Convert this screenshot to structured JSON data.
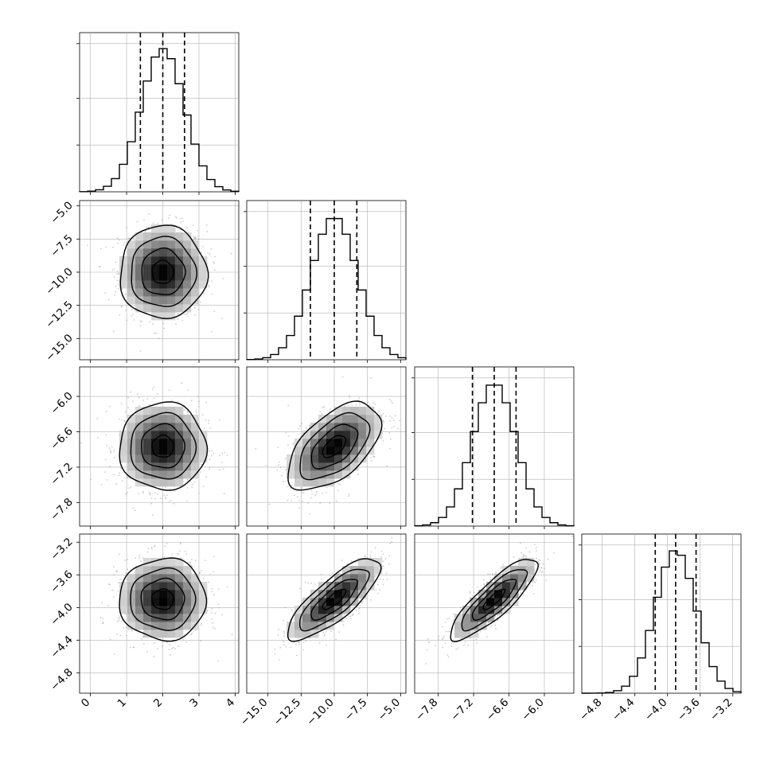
{
  "figure": {
    "type": "corner-plot",
    "parameters": [
      {
        "range": [
          -0.3,
          4.1
        ],
        "ticks": [
          "0",
          "1",
          "2",
          "3",
          "4"
        ],
        "tick_values": [
          0,
          1,
          2,
          3,
          4
        ],
        "quantiles": [
          1.38,
          2.0,
          2.6
        ],
        "mean": 2.0,
        "sd": 0.6
      },
      {
        "range": [
          -16.6,
          -4.6
        ],
        "ticks": [
          "−15.0",
          "−12.5",
          "−10.0",
          "−7.5",
          "−5.0"
        ],
        "tick_values": [
          -15,
          -12.5,
          -10,
          -7.5,
          -5
        ],
        "quantiles": [
          -11.8,
          -10.0,
          -8.3
        ],
        "mean": -10.0,
        "sd": 1.75
      },
      {
        "range": [
          -8.2,
          -5.5
        ],
        "ticks": [
          "−7.8",
          "−7.2",
          "−6.6",
          "−6.0"
        ],
        "tick_values": [
          -7.8,
          -7.2,
          -6.6,
          -6.0
        ],
        "quantiles": [
          -7.22,
          -6.85,
          -6.48
        ],
        "mean": -6.85,
        "sd": 0.37
      },
      {
        "range": [
          -5.05,
          -3.1
        ],
        "ticks": [
          "−4.8",
          "−4.4",
          "−4.0",
          "−3.6",
          "−3.2"
        ],
        "tick_values": [
          -4.8,
          -4.4,
          -4.0,
          -3.6,
          -3.2
        ],
        "quantiles": [
          -4.15,
          -3.9,
          -3.65
        ],
        "mean": -3.9,
        "sd": 0.25
      }
    ],
    "correlations": {
      "1-0": 0.0,
      "2-0": 0.0,
      "2-1": 0.55,
      "3-0": 0.0,
      "3-1": 0.8,
      "3-2": 0.85
    },
    "colors": {
      "histogram": "#000000",
      "scatter": "#9a9a9a",
      "grid": "#b0b0b0"
    }
  },
  "chart_data": {
    "type": "histogram",
    "title": "",
    "series": [
      {
        "name": "",
        "x_range": [
          -0.3,
          4.1
        ],
        "median": 2.0,
        "q16": 1.38,
        "q84": 2.6
      },
      {
        "name": "",
        "x_range": [
          -16.6,
          -4.6
        ],
        "median": -10.0,
        "q16": -11.8,
        "q84": -8.3
      },
      {
        "name": "",
        "x_range": [
          -8.2,
          -5.5
        ],
        "median": -6.85,
        "q16": -7.22,
        "q84": -6.48
      },
      {
        "name": "",
        "x_range": [
          -5.05,
          -3.1
        ],
        "median": -3.9,
        "q16": -4.15,
        "q84": -3.65
      }
    ],
    "grid": true,
    "legend": "none"
  }
}
